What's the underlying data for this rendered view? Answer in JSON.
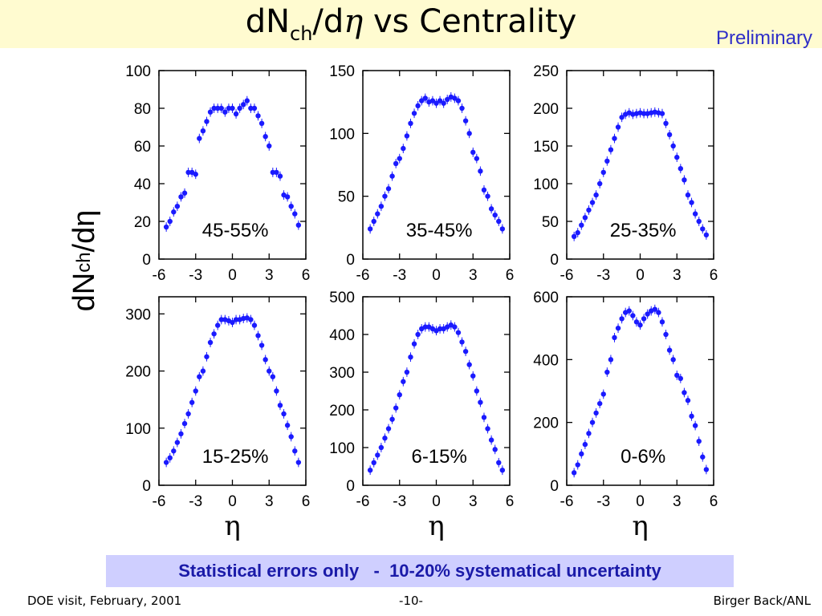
{
  "title": {
    "main": "dN",
    "sub": "ch",
    "mid": "/d",
    "eta": "η",
    "rest": " vs Centrality"
  },
  "preliminary": "Preliminary",
  "ylabel": {
    "main": "dN",
    "sub": "ch",
    "rest": "/dη"
  },
  "note": "Statistical errors only   -  10-20% systematical uncertainty",
  "footer": {
    "left": "DOE visit, February, 2001",
    "center": "-10-",
    "right": "Birger Back/ANL"
  },
  "colors": {
    "title_bar": "#fffbd0",
    "marker": "#1a1aff",
    "note_bg": "#cfcfff",
    "note_text": "#1a1aa8",
    "preliminary": "#2f2fc8"
  },
  "chart_data": [
    {
      "type": "scatter",
      "label": "45-55%",
      "xlabel": "",
      "ylim": [
        0,
        100
      ],
      "yticks": [
        0,
        20,
        40,
        60,
        80,
        100
      ],
      "xlim": [
        -6,
        6
      ],
      "xticks": [
        -6,
        -3,
        0,
        3,
        6
      ],
      "x": [
        -5.4,
        -5.1,
        -4.8,
        -4.5,
        -4.2,
        -3.9,
        -3.6,
        -3.3,
        -3.0,
        -2.7,
        -2.4,
        -2.1,
        -1.8,
        -1.5,
        -1.2,
        -0.9,
        -0.6,
        -0.3,
        0.0,
        0.3,
        0.6,
        0.9,
        1.2,
        1.5,
        1.8,
        2.1,
        2.4,
        2.7,
        3.0,
        3.3,
        3.6,
        3.9,
        4.2,
        4.5,
        4.8,
        5.1,
        5.4
      ],
      "y": [
        17,
        20,
        25,
        28,
        33,
        35,
        46,
        46,
        45,
        64,
        68,
        73,
        78,
        80,
        80,
        80,
        78,
        80,
        80,
        77,
        80,
        82,
        84,
        80,
        80,
        76,
        72,
        65,
        60,
        46,
        46,
        44,
        34,
        33,
        28,
        24,
        18
      ]
    },
    {
      "type": "scatter",
      "label": "35-45%",
      "xlabel": "",
      "ylim": [
        0,
        150
      ],
      "yticks": [
        0,
        50,
        100,
        150
      ],
      "xlim": [
        -6,
        6
      ],
      "xticks": [
        -6,
        -3,
        0,
        3,
        6
      ],
      "x": [
        -5.4,
        -5.1,
        -4.8,
        -4.5,
        -4.2,
        -3.9,
        -3.6,
        -3.3,
        -3.0,
        -2.7,
        -2.4,
        -2.1,
        -1.8,
        -1.5,
        -1.2,
        -0.9,
        -0.6,
        -0.3,
        0.0,
        0.3,
        0.6,
        0.9,
        1.2,
        1.5,
        1.8,
        2.1,
        2.4,
        2.7,
        3.0,
        3.3,
        3.6,
        3.9,
        4.2,
        4.5,
        4.8,
        5.1,
        5.4
      ],
      "y": [
        24,
        30,
        36,
        42,
        50,
        56,
        66,
        76,
        80,
        88,
        98,
        108,
        116,
        122,
        126,
        128,
        125,
        126,
        124,
        126,
        124,
        127,
        129,
        128,
        126,
        120,
        110,
        100,
        85,
        80,
        70,
        55,
        50,
        40,
        35,
        30,
        24
      ]
    },
    {
      "type": "scatter",
      "label": "25-35%",
      "xlabel": "",
      "ylim": [
        0,
        250
      ],
      "yticks": [
        0,
        50,
        100,
        150,
        200,
        250
      ],
      "xlim": [
        -6,
        6
      ],
      "xticks": [
        -6,
        -3,
        0,
        3,
        6
      ],
      "x": [
        -5.4,
        -5.1,
        -4.8,
        -4.5,
        -4.2,
        -3.9,
        -3.6,
        -3.3,
        -3.0,
        -2.7,
        -2.4,
        -2.1,
        -1.8,
        -1.5,
        -1.2,
        -0.9,
        -0.6,
        -0.3,
        0.0,
        0.3,
        0.6,
        0.9,
        1.2,
        1.5,
        1.8,
        2.1,
        2.4,
        2.7,
        3.0,
        3.3,
        3.6,
        3.9,
        4.2,
        4.5,
        4.8,
        5.1,
        5.4
      ],
      "y": [
        30,
        35,
        45,
        55,
        65,
        75,
        85,
        100,
        115,
        130,
        145,
        160,
        175,
        188,
        192,
        194,
        192,
        193,
        194,
        193,
        193,
        194,
        195,
        194,
        193,
        180,
        165,
        150,
        135,
        120,
        105,
        85,
        75,
        60,
        50,
        40,
        32
      ]
    },
    {
      "type": "scatter",
      "label": "15-25%",
      "xlabel": "η",
      "ylim": [
        0,
        330
      ],
      "yticks": [
        0,
        100,
        200,
        300
      ],
      "xlim": [
        -6,
        6
      ],
      "xticks": [
        -6,
        -3,
        0,
        3,
        6
      ],
      "x": [
        -5.4,
        -5.1,
        -4.8,
        -4.5,
        -4.2,
        -3.9,
        -3.6,
        -3.3,
        -3.0,
        -2.7,
        -2.4,
        -2.1,
        -1.8,
        -1.5,
        -1.2,
        -0.9,
        -0.6,
        -0.3,
        0.0,
        0.3,
        0.6,
        0.9,
        1.2,
        1.5,
        1.8,
        2.1,
        2.4,
        2.7,
        3.0,
        3.3,
        3.6,
        3.9,
        4.2,
        4.5,
        4.8,
        5.1,
        5.4
      ],
      "y": [
        40,
        48,
        60,
        75,
        90,
        108,
        125,
        145,
        165,
        190,
        200,
        225,
        250,
        265,
        280,
        290,
        290,
        288,
        285,
        290,
        290,
        292,
        293,
        290,
        280,
        262,
        245,
        220,
        200,
        190,
        165,
        140,
        125,
        105,
        85,
        60,
        40
      ]
    },
    {
      "type": "scatter",
      "label": "6-15%",
      "xlabel": "η",
      "ylim": [
        0,
        500
      ],
      "yticks": [
        0,
        100,
        200,
        300,
        400,
        500
      ],
      "xlim": [
        -6,
        6
      ],
      "xticks": [
        -6,
        -3,
        0,
        3,
        6
      ],
      "x": [
        -5.4,
        -5.1,
        -4.8,
        -4.5,
        -4.2,
        -3.9,
        -3.6,
        -3.3,
        -3.0,
        -2.7,
        -2.4,
        -2.1,
        -1.8,
        -1.5,
        -1.2,
        -0.9,
        -0.6,
        -0.3,
        0.0,
        0.3,
        0.6,
        0.9,
        1.2,
        1.5,
        1.8,
        2.1,
        2.4,
        2.7,
        3.0,
        3.3,
        3.6,
        3.9,
        4.2,
        4.5,
        4.8,
        5.1,
        5.4
      ],
      "y": [
        40,
        60,
        80,
        100,
        125,
        150,
        175,
        205,
        240,
        275,
        300,
        340,
        375,
        400,
        415,
        420,
        420,
        415,
        410,
        415,
        415,
        420,
        425,
        420,
        405,
        380,
        355,
        320,
        290,
        250,
        220,
        180,
        150,
        120,
        95,
        60,
        40
      ]
    },
    {
      "type": "scatter",
      "label": "0-6%",
      "xlabel": "η",
      "ylim": [
        0,
        600
      ],
      "yticks": [
        0,
        200,
        400,
        600
      ],
      "xlim": [
        -6,
        6
      ],
      "xticks": [
        -6,
        -3,
        0,
        3,
        6
      ],
      "x": [
        -5.4,
        -5.1,
        -4.8,
        -4.5,
        -4.2,
        -3.9,
        -3.6,
        -3.3,
        -3.0,
        -2.7,
        -2.4,
        -2.1,
        -1.8,
        -1.5,
        -1.2,
        -0.9,
        -0.6,
        -0.3,
        0.0,
        0.3,
        0.6,
        0.9,
        1.2,
        1.5,
        1.8,
        2.1,
        2.4,
        2.7,
        3.0,
        3.3,
        3.6,
        3.9,
        4.2,
        4.5,
        4.8,
        5.1,
        5.4
      ],
      "y": [
        40,
        65,
        100,
        130,
        165,
        200,
        230,
        260,
        290,
        360,
        400,
        470,
        500,
        530,
        550,
        555,
        540,
        520,
        510,
        530,
        545,
        555,
        560,
        550,
        520,
        480,
        430,
        400,
        350,
        340,
        295,
        270,
        220,
        190,
        140,
        90,
        50
      ]
    }
  ]
}
